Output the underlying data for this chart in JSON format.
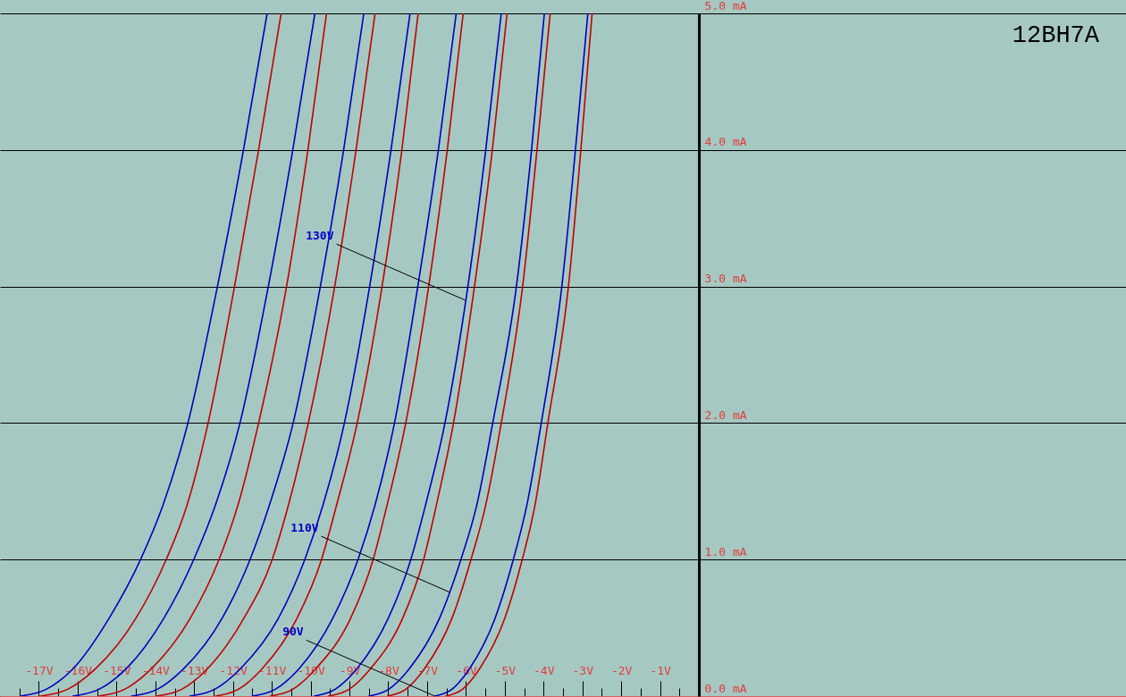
{
  "chart_data": {
    "type": "line",
    "title": "12BH7A",
    "xlim": [
      -18,
      11
    ],
    "ylim": [
      0,
      5
    ],
    "grid": "y",
    "xticks": [
      {
        "value": -17.5,
        "label": null
      },
      {
        "value": -17,
        "label": "-17V"
      },
      {
        "value": -16.5,
        "label": null
      },
      {
        "value": -16,
        "label": "-16V"
      },
      {
        "value": -15.5,
        "label": null
      },
      {
        "value": -15,
        "label": "-15V"
      },
      {
        "value": -14.5,
        "label": null
      },
      {
        "value": -14,
        "label": "-14V"
      },
      {
        "value": -13.5,
        "label": null
      },
      {
        "value": -13,
        "label": "-13V"
      },
      {
        "value": -12.5,
        "label": null
      },
      {
        "value": -12,
        "label": "-12V"
      },
      {
        "value": -11.5,
        "label": null
      },
      {
        "value": -11,
        "label": "-11V"
      },
      {
        "value": -10.5,
        "label": null
      },
      {
        "value": -10,
        "label": "-10V"
      },
      {
        "value": -9.5,
        "label": null
      },
      {
        "value": -9,
        "label": "-9V"
      },
      {
        "value": -8.5,
        "label": null
      },
      {
        "value": -8,
        "label": "-8V"
      },
      {
        "value": -7.5,
        "label": null
      },
      {
        "value": -7,
        "label": "-7V"
      },
      {
        "value": -6.5,
        "label": null
      },
      {
        "value": -6,
        "label": "-6V"
      },
      {
        "value": -5.5,
        "label": null
      },
      {
        "value": -5,
        "label": "-5V"
      },
      {
        "value": -4.5,
        "label": null
      },
      {
        "value": -4,
        "label": "-4V"
      },
      {
        "value": -3.5,
        "label": null
      },
      {
        "value": -3,
        "label": "-3V"
      },
      {
        "value": -2.5,
        "label": null
      },
      {
        "value": -2,
        "label": "-2V"
      },
      {
        "value": -1.5,
        "label": null
      },
      {
        "value": -1,
        "label": "-1V"
      },
      {
        "value": -0.5,
        "label": null
      }
    ],
    "yticks": [
      {
        "value": 0,
        "label": "0.0 mA"
      },
      {
        "value": 1,
        "label": "1.0 mA"
      },
      {
        "value": 2,
        "label": "2.0 mA"
      },
      {
        "value": 3,
        "label": "3.0 mA"
      },
      {
        "value": 4,
        "label": "4.0 mA"
      },
      {
        "value": 5,
        "label": "5.0 mA"
      }
    ],
    "series": [
      {
        "color": "#0000c0",
        "x": [
          -17.48,
          -16.81,
          -16.12,
          -15.19,
          -14.38,
          -13.8,
          -13.16,
          -12.4,
          -11.73,
          -11.12
        ],
        "values": [
          0,
          0.05,
          0.2,
          0.57,
          1,
          1.4,
          2,
          3,
          4,
          5
        ]
      },
      {
        "color": "#c00000",
        "x": [
          -16.96,
          -16.26,
          -15.54,
          -14.5,
          -13.72,
          -13.18,
          -12.64,
          -11.96,
          -11.34,
          -10.76
        ],
        "values": [
          0,
          0.05,
          0.2,
          0.57,
          1,
          1.4,
          2,
          3,
          4,
          5
        ]
      },
      {
        "color": "#0000c0",
        "x": [
          -16.12,
          -15.45,
          -14.75,
          -13.78,
          -13.01,
          -12.45,
          -11.82,
          -11.09,
          -10.46,
          -9.89
        ],
        "values": [
          0,
          0.05,
          0.2,
          0.57,
          1,
          1.4,
          2,
          3,
          4,
          5
        ]
      },
      {
        "color": "#c00000",
        "x": [
          -15.46,
          -14.79,
          -14.1,
          -13.1,
          -12.36,
          -11.87,
          -11.34,
          -10.62,
          -10.07,
          -9.59
        ],
        "values": [
          0,
          0.05,
          0.2,
          0.57,
          1,
          1.4,
          2,
          3,
          4,
          5
        ]
      },
      {
        "color": "#0000c0",
        "x": [
          -14.61,
          -13.95,
          -13.27,
          -12.28,
          -11.56,
          -11.06,
          -10.45,
          -9.75,
          -9.15,
          -8.63
        ],
        "values": [
          0,
          0.05,
          0.2,
          0.57,
          1,
          1.4,
          2,
          3,
          4,
          5
        ]
      },
      {
        "color": "#c00000",
        "x": [
          -13.97,
          -13.32,
          -12.66,
          -11.72,
          -10.99,
          -10.57,
          -10.06,
          -9.38,
          -8.83,
          -8.34
        ],
        "values": [
          0,
          0.05,
          0.2,
          0.57,
          1,
          1.4,
          2,
          3,
          4,
          5
        ]
      },
      {
        "color": "#0000c0",
        "x": [
          -13.11,
          -12.47,
          -11.81,
          -10.83,
          -10.15,
          -9.68,
          -9.13,
          -8.48,
          -7.93,
          -7.44
        ],
        "values": [
          0,
          0.05,
          0.2,
          0.57,
          1,
          1.4,
          2,
          3,
          4,
          5
        ]
      },
      {
        "color": "#c00000",
        "x": [
          -12.45,
          -11.86,
          -11.25,
          -10.35,
          -9.72,
          -9.33,
          -8.8,
          -8.16,
          -7.65,
          -7.23
        ],
        "values": [
          0,
          0.05,
          0.2,
          0.57,
          1,
          1.4,
          2,
          3,
          4,
          5
        ]
      },
      {
        "color": "#0000c0",
        "x": [
          -11.5,
          -10.91,
          -10.3,
          -9.43,
          -8.78,
          -8.34,
          -7.84,
          -7.24,
          -6.71,
          -6.25
        ],
        "values": [
          0,
          0.05,
          0.2,
          0.57,
          1,
          1.4,
          2,
          3,
          4,
          5
        ]
      },
      {
        "color": "#c00000",
        "x": [
          -11.04,
          -10.46,
          -9.87,
          -8.97,
          -8.39,
          -8.03,
          -7.55,
          -6.96,
          -6.48,
          -6.07
        ],
        "values": [
          0,
          0.05,
          0.2,
          0.57,
          1,
          1.4,
          2,
          3,
          4,
          5
        ]
      },
      {
        "color": "#0000c0",
        "x": [
          -9.91,
          -9.37,
          -8.81,
          -8,
          -7.42,
          -7.04,
          -6.54,
          -5.95,
          -5.49,
          -5.09
        ],
        "values": [
          0,
          0.05,
          0.2,
          0.57,
          1,
          1.4,
          2,
          3,
          4,
          5
        ]
      },
      {
        "color": "#c00000",
        "x": [
          -9.54,
          -9.01,
          -8.46,
          -7.63,
          -7.09,
          -6.76,
          -6.32,
          -5.78,
          -5.32,
          -4.94
        ],
        "values": [
          0,
          0.05,
          0.2,
          0.57,
          1,
          1.4,
          2,
          3,
          4,
          5
        ]
      },
      {
        "color": "#0000c0",
        "x": [
          -8.5,
          -7.99,
          -7.46,
          -6.68,
          -6.13,
          -5.72,
          -5.31,
          -4.7,
          -4.31,
          -3.98
        ],
        "values": [
          0,
          0.05,
          0.2,
          0.57,
          1,
          1.4,
          2,
          3,
          4,
          5
        ]
      },
      {
        "color": "#c00000",
        "x": [
          -8.02,
          -7.55,
          -7.07,
          -6.36,
          -5.87,
          -5.49,
          -5.09,
          -4.54,
          -4.17,
          -3.83
        ],
        "values": [
          0,
          0.05,
          0.2,
          0.57,
          1,
          1.4,
          2,
          3,
          4,
          5
        ]
      },
      {
        "color": "#0000c0",
        "x": [
          -6.8,
          -6.36,
          -5.91,
          -5.25,
          -4.78,
          -4.43,
          -4.06,
          -3.53,
          -3.18,
          -2.86
        ],
        "values": [
          0,
          0.05,
          0.2,
          0.57,
          1,
          1.4,
          2,
          3,
          4,
          5
        ]
      },
      {
        "color": "#c00000",
        "x": [
          -6.52,
          -6.09,
          -5.65,
          -5,
          -4.55,
          -4.22,
          -3.89,
          -3.36,
          -3.04,
          -2.75
        ],
        "values": [
          0,
          0.05,
          0.2,
          0.57,
          1,
          1.4,
          2,
          3,
          4,
          5
        ]
      }
    ],
    "annotations": [
      {
        "text": "130V",
        "x": -6.02,
        "y": 2.9
      },
      {
        "text": "110V",
        "x": -6.41,
        "y": 0.76
      },
      {
        "text": "90V",
        "x": -6.8,
        "y": 0
      }
    ]
  }
}
